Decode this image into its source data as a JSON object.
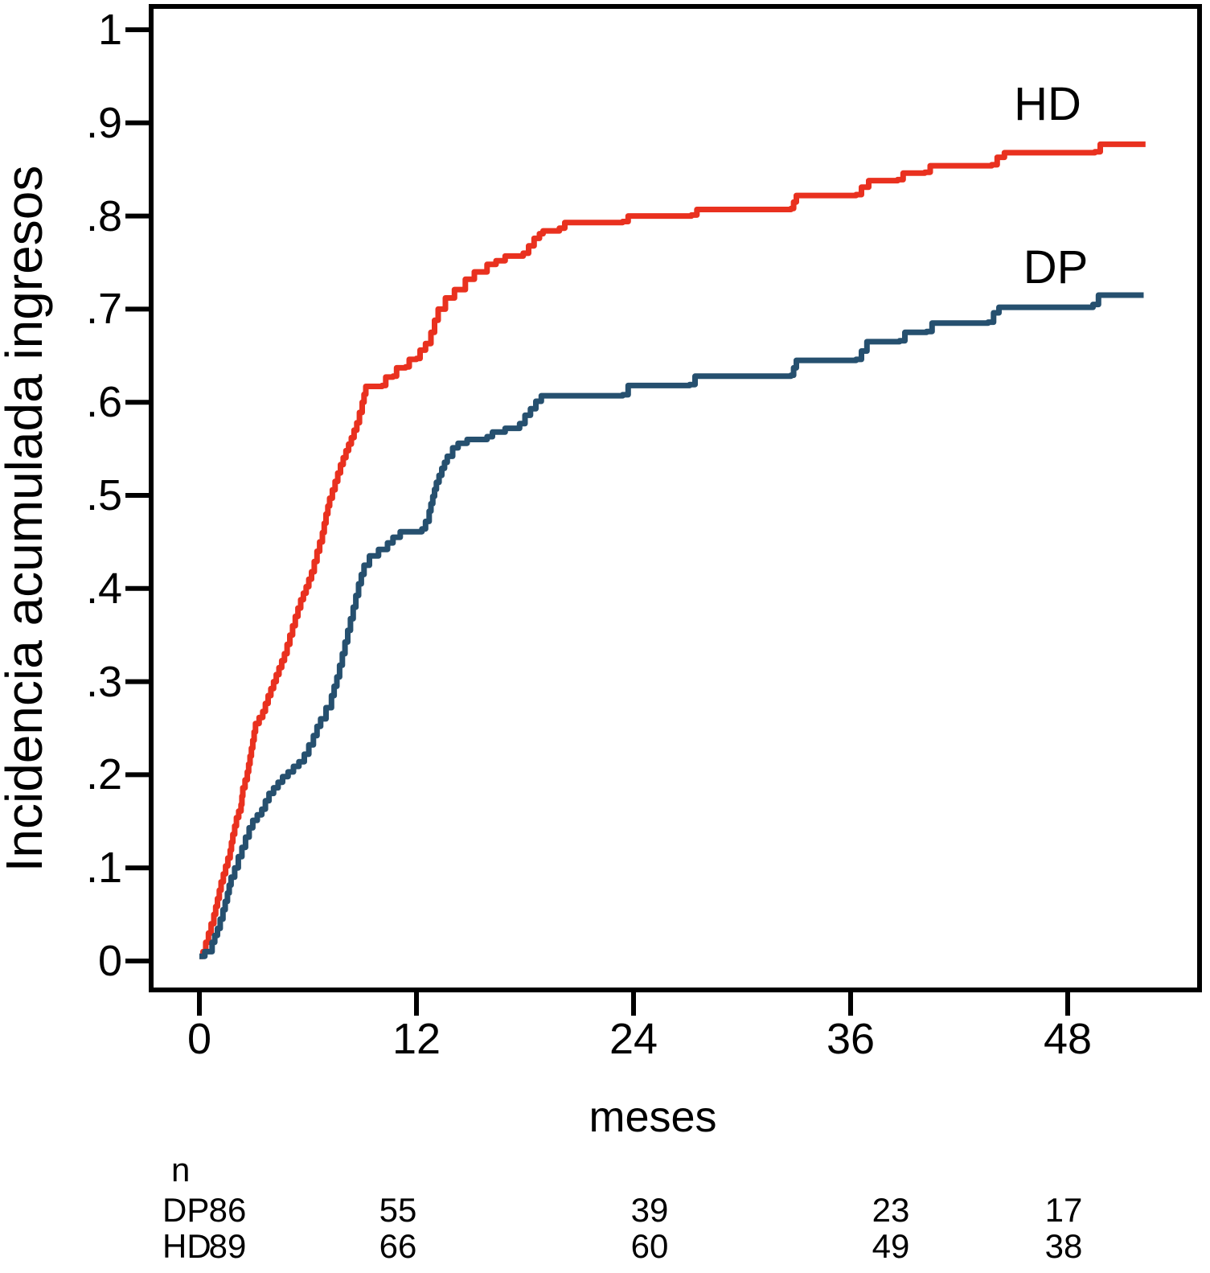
{
  "chart_data": {
    "type": "line",
    "subtype": "step-cumulative-incidence",
    "title": "",
    "xlabel": "meses",
    "ylabel": "Incidencia acumulada ingresos",
    "grid": false,
    "legend_position": "annotated-inline",
    "axis_color": "#000000",
    "x_axis": {
      "range": [
        -2.6,
        55.5
      ],
      "ticks": [
        {
          "label": "0",
          "value": 0
        },
        {
          "label": "12",
          "value": 12
        },
        {
          "label": "24",
          "value": 24
        },
        {
          "label": "36",
          "value": 36
        },
        {
          "label": "48",
          "value": 48
        }
      ]
    },
    "y_axis": {
      "range": [
        -0.031,
        1.026
      ],
      "ticks": [
        {
          "label": "0",
          "value": 0
        },
        {
          "label": ".1",
          "value": 0.1
        },
        {
          "label": ".2",
          "value": 0.2
        },
        {
          "label": ".3",
          "value": 0.3
        },
        {
          "label": ".4",
          "value": 0.4
        },
        {
          "label": ".5",
          "value": 0.5
        },
        {
          "label": ".6",
          "value": 0.6
        },
        {
          "label": ".7",
          "value": 0.7
        },
        {
          "label": ".8",
          "value": 0.8
        },
        {
          "label": ".9",
          "value": 0.9
        },
        {
          "label": "1",
          "value": 1
        }
      ]
    },
    "series": [
      {
        "name": "HD",
        "color": "#e9311f",
        "points": [
          [
            0,
            0.005
          ],
          [
            0.2,
            0.01
          ],
          [
            0.5,
            0.03
          ],
          [
            0.8,
            0.05
          ],
          [
            1.0,
            0.067
          ],
          [
            1.2,
            0.085
          ],
          [
            1.45,
            0.102
          ],
          [
            1.7,
            0.119
          ],
          [
            1.85,
            0.136
          ],
          [
            2.05,
            0.154
          ],
          [
            2.3,
            0.168
          ],
          [
            2.4,
            0.186
          ],
          [
            2.65,
            0.203
          ],
          [
            2.8,
            0.22
          ],
          [
            2.95,
            0.237
          ],
          [
            3.1,
            0.255
          ],
          [
            3.5,
            0.268
          ],
          [
            3.8,
            0.285
          ],
          [
            4.1,
            0.3
          ],
          [
            4.4,
            0.315
          ],
          [
            4.7,
            0.33
          ],
          [
            5.0,
            0.35
          ],
          [
            5.3,
            0.37
          ],
          [
            5.6,
            0.388
          ],
          [
            5.9,
            0.402
          ],
          [
            6.2,
            0.418
          ],
          [
            6.5,
            0.44
          ],
          [
            6.8,
            0.46
          ],
          [
            7.0,
            0.48
          ],
          [
            7.2,
            0.497
          ],
          [
            7.5,
            0.515
          ],
          [
            7.8,
            0.533
          ],
          [
            8.1,
            0.548
          ],
          [
            8.4,
            0.562
          ],
          [
            8.7,
            0.578
          ],
          [
            9.0,
            0.6
          ],
          [
            9.2,
            0.617
          ],
          [
            10.1,
            0.618
          ],
          [
            10.3,
            0.627
          ],
          [
            10.7,
            0.628
          ],
          [
            10.9,
            0.637
          ],
          [
            11.4,
            0.638
          ],
          [
            11.6,
            0.646
          ],
          [
            12.0,
            0.647
          ],
          [
            12.2,
            0.656
          ],
          [
            12.5,
            0.663
          ],
          [
            12.8,
            0.675
          ],
          [
            13.0,
            0.688
          ],
          [
            13.2,
            0.7
          ],
          [
            13.6,
            0.712
          ],
          [
            14.1,
            0.721
          ],
          [
            14.7,
            0.732
          ],
          [
            15.2,
            0.74
          ],
          [
            15.9,
            0.748
          ],
          [
            16.4,
            0.752
          ],
          [
            16.9,
            0.757
          ],
          [
            17.9,
            0.76
          ],
          [
            18.2,
            0.768
          ],
          [
            18.5,
            0.776
          ],
          [
            18.8,
            0.781
          ],
          [
            19.0,
            0.784
          ],
          [
            19.9,
            0.787
          ],
          [
            20.2,
            0.793
          ],
          [
            23.4,
            0.794
          ],
          [
            23.7,
            0.8
          ],
          [
            27.2,
            0.801
          ],
          [
            27.5,
            0.807
          ],
          [
            32.7,
            0.808
          ],
          [
            33.0,
            0.822
          ],
          [
            36.3,
            0.823
          ],
          [
            36.6,
            0.831
          ],
          [
            37.0,
            0.838
          ],
          [
            38.6,
            0.839
          ],
          [
            38.9,
            0.846
          ],
          [
            40.1,
            0.847
          ],
          [
            40.4,
            0.854
          ],
          [
            43.8,
            0.855
          ],
          [
            44.1,
            0.863
          ],
          [
            44.5,
            0.868
          ],
          [
            49.5,
            0.869
          ],
          [
            49.8,
            0.877
          ],
          [
            52.3,
            0.877
          ]
        ]
      },
      {
        "name": "DP",
        "color": "#26506f",
        "points": [
          [
            0,
            0.005
          ],
          [
            0.3,
            0.01
          ],
          [
            0.7,
            0.02
          ],
          [
            1.0,
            0.035
          ],
          [
            1.3,
            0.055
          ],
          [
            1.55,
            0.073
          ],
          [
            1.75,
            0.09
          ],
          [
            1.95,
            0.1
          ],
          [
            2.15,
            0.112
          ],
          [
            2.35,
            0.122
          ],
          [
            2.55,
            0.133
          ],
          [
            2.75,
            0.143
          ],
          [
            2.95,
            0.151
          ],
          [
            3.2,
            0.157
          ],
          [
            3.45,
            0.163
          ],
          [
            3.65,
            0.172
          ],
          [
            3.85,
            0.18
          ],
          [
            4.1,
            0.186
          ],
          [
            4.35,
            0.192
          ],
          [
            4.6,
            0.198
          ],
          [
            4.9,
            0.203
          ],
          [
            5.2,
            0.209
          ],
          [
            5.5,
            0.214
          ],
          [
            5.8,
            0.222
          ],
          [
            6.05,
            0.232
          ],
          [
            6.3,
            0.242
          ],
          [
            6.5,
            0.252
          ],
          [
            6.7,
            0.26
          ],
          [
            7.0,
            0.272
          ],
          [
            7.3,
            0.285
          ],
          [
            7.6,
            0.305
          ],
          [
            7.9,
            0.33
          ],
          [
            8.2,
            0.355
          ],
          [
            8.5,
            0.38
          ],
          [
            8.8,
            0.405
          ],
          [
            9.1,
            0.425
          ],
          [
            9.4,
            0.435
          ],
          [
            9.9,
            0.442
          ],
          [
            10.4,
            0.449
          ],
          [
            10.7,
            0.455
          ],
          [
            11.1,
            0.461
          ],
          [
            12.3,
            0.464
          ],
          [
            12.5,
            0.472
          ],
          [
            12.7,
            0.483
          ],
          [
            12.9,
            0.499
          ],
          [
            13.1,
            0.514
          ],
          [
            13.4,
            0.529
          ],
          [
            13.7,
            0.542
          ],
          [
            14.0,
            0.551
          ],
          [
            14.3,
            0.556
          ],
          [
            14.8,
            0.56
          ],
          [
            15.9,
            0.563
          ],
          [
            16.2,
            0.568
          ],
          [
            16.9,
            0.572
          ],
          [
            17.7,
            0.577
          ],
          [
            18.0,
            0.586
          ],
          [
            18.3,
            0.593
          ],
          [
            18.6,
            0.601
          ],
          [
            18.9,
            0.607
          ],
          [
            23.4,
            0.608
          ],
          [
            23.7,
            0.618
          ],
          [
            27.1,
            0.619
          ],
          [
            27.4,
            0.628
          ],
          [
            32.7,
            0.629
          ],
          [
            33.0,
            0.645
          ],
          [
            36.3,
            0.646
          ],
          [
            36.6,
            0.655
          ],
          [
            36.9,
            0.665
          ],
          [
            38.7,
            0.666
          ],
          [
            39.0,
            0.675
          ],
          [
            40.2,
            0.676
          ],
          [
            40.5,
            0.685
          ],
          [
            43.6,
            0.686
          ],
          [
            43.9,
            0.696
          ],
          [
            44.2,
            0.702
          ],
          [
            49.4,
            0.705
          ],
          [
            49.7,
            0.715
          ],
          [
            52.2,
            0.715
          ]
        ]
      }
    ],
    "risk_table": {
      "header": "n",
      "rows": [
        {
          "label": "DP",
          "values": [
            "86",
            "55",
            "39",
            "23",
            "17"
          ]
        },
        {
          "label": "HD",
          "values": [
            "89",
            "66",
            "60",
            "49",
            "38"
          ]
        }
      ]
    }
  }
}
